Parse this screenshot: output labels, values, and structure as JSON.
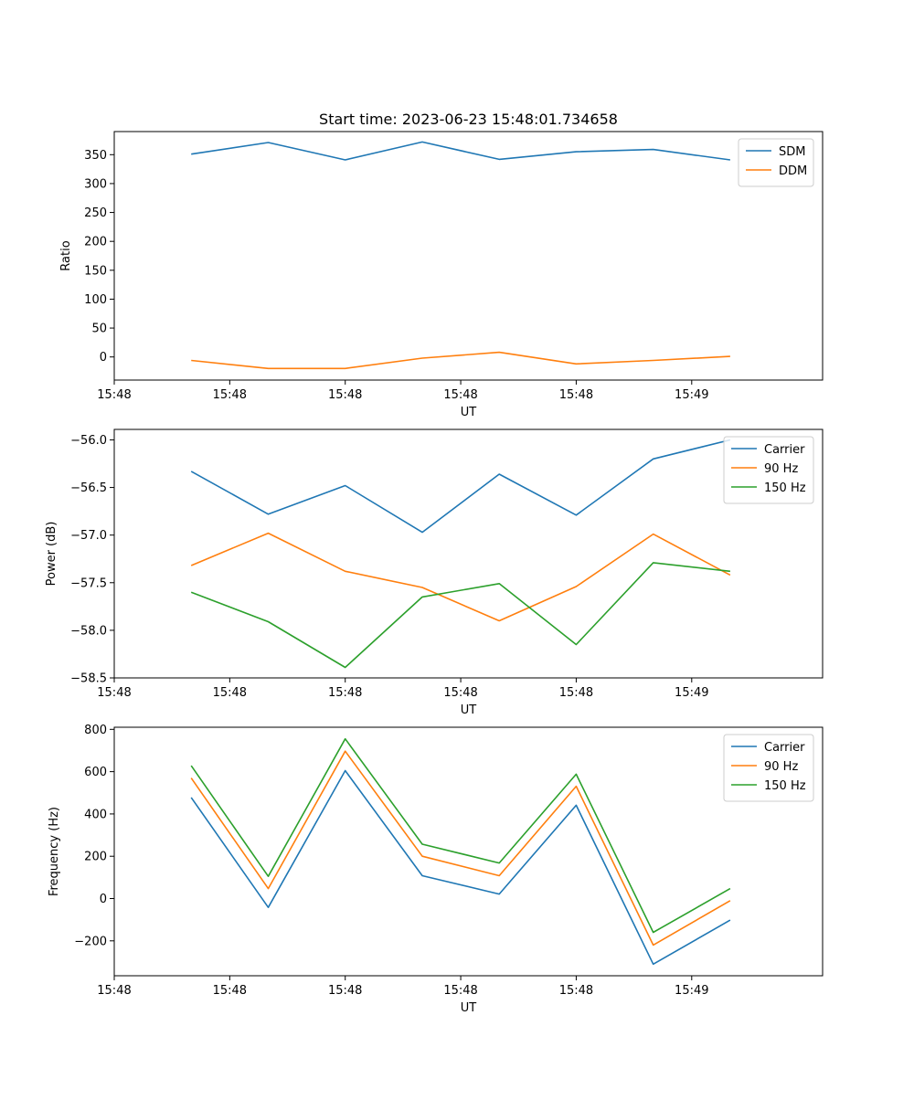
{
  "title": "Start time: 2023-06-23 15:48:01.734658",
  "chart_data": [
    {
      "type": "line",
      "xlabel": "UT",
      "ylabel": "Ratio",
      "x": [
        1,
        2,
        3,
        4,
        5,
        6,
        7,
        8
      ],
      "xlim": [
        0.0,
        9.2
      ],
      "x_ticks": [
        {
          "value": 0.0,
          "label": "15:48"
        },
        {
          "value": 1.5,
          "label": "15:48"
        },
        {
          "value": 3.0,
          "label": "15:48"
        },
        {
          "value": 4.5,
          "label": "15:48"
        },
        {
          "value": 6.0,
          "label": "15:48"
        },
        {
          "value": 7.5,
          "label": "15:49"
        }
      ],
      "ylim": [
        -40,
        390
      ],
      "y_ticks": [
        {
          "value": 0,
          "label": "0"
        },
        {
          "value": 50,
          "label": "50"
        },
        {
          "value": 100,
          "label": "100"
        },
        {
          "value": 150,
          "label": "150"
        },
        {
          "value": 200,
          "label": "200"
        },
        {
          "value": 250,
          "label": "250"
        },
        {
          "value": 300,
          "label": "300"
        },
        {
          "value": 350,
          "label": "350"
        }
      ],
      "legend_position": "top-right",
      "series": [
        {
          "name": "SDM",
          "color": "#1f77b4",
          "values": [
            351,
            371,
            341,
            372,
            342,
            355,
            359,
            341
          ]
        },
        {
          "name": "DDM",
          "color": "#ff7f0e",
          "values": [
            -6,
            -20,
            -20,
            -2,
            8,
            -12,
            -6,
            1
          ]
        }
      ]
    },
    {
      "type": "line",
      "xlabel": "UT",
      "ylabel": "Power (dB)",
      "x": [
        1,
        2,
        3,
        4,
        5,
        6,
        7,
        8
      ],
      "xlim": [
        0.0,
        9.2
      ],
      "x_ticks": [
        {
          "value": 0.0,
          "label": "15:48"
        },
        {
          "value": 1.5,
          "label": "15:48"
        },
        {
          "value": 3.0,
          "label": "15:48"
        },
        {
          "value": 4.5,
          "label": "15:48"
        },
        {
          "value": 6.0,
          "label": "15:48"
        },
        {
          "value": 7.5,
          "label": "15:49"
        }
      ],
      "ylim": [
        -58.5,
        -55.89
      ],
      "y_ticks": [
        {
          "value": -58.5,
          "label": "−58.5"
        },
        {
          "value": -58.0,
          "label": "−58.0"
        },
        {
          "value": -57.5,
          "label": "−57.5"
        },
        {
          "value": -57.0,
          "label": "−57.0"
        },
        {
          "value": -56.5,
          "label": "−56.5"
        },
        {
          "value": -56.0,
          "label": "−56.0"
        }
      ],
      "legend_position": "top-right",
      "series": [
        {
          "name": "Carrier",
          "color": "#1f77b4",
          "values": [
            -56.33,
            -56.78,
            -56.48,
            -56.97,
            -56.36,
            -56.79,
            -56.2,
            -56.0
          ]
        },
        {
          "name": "90 Hz",
          "color": "#ff7f0e",
          "values": [
            -57.32,
            -56.98,
            -57.38,
            -57.55,
            -57.9,
            -57.54,
            -56.99,
            -57.42
          ]
        },
        {
          "name": "150 Hz",
          "color": "#2ca02c",
          "values": [
            -57.6,
            -57.91,
            -58.39,
            -57.65,
            -57.51,
            -58.15,
            -57.29,
            -57.38
          ]
        }
      ]
    },
    {
      "type": "line",
      "xlabel": "UT",
      "ylabel": "Frequency (Hz)",
      "x": [
        1,
        2,
        3,
        4,
        5,
        6,
        7,
        8
      ],
      "xlim": [
        0.0,
        9.2
      ],
      "x_ticks": [
        {
          "value": 0.0,
          "label": "15:48"
        },
        {
          "value": 1.5,
          "label": "15:48"
        },
        {
          "value": 3.0,
          "label": "15:48"
        },
        {
          "value": 4.5,
          "label": "15:48"
        },
        {
          "value": 6.0,
          "label": "15:48"
        },
        {
          "value": 7.5,
          "label": "15:49"
        }
      ],
      "ylim": [
        -365,
        810
      ],
      "y_ticks": [
        {
          "value": -200,
          "label": "−200"
        },
        {
          "value": 0,
          "label": "0"
        },
        {
          "value": 200,
          "label": "200"
        },
        {
          "value": 400,
          "label": "400"
        },
        {
          "value": 600,
          "label": "600"
        },
        {
          "value": 800,
          "label": "800"
        }
      ],
      "legend_position": "top-right",
      "series": [
        {
          "name": "Carrier",
          "color": "#1f77b4",
          "values": [
            478,
            -42,
            605,
            108,
            21,
            441,
            -310,
            -102
          ]
        },
        {
          "name": "90 Hz",
          "color": "#ff7f0e",
          "values": [
            570,
            47,
            697,
            200,
            108,
            531,
            -220,
            -10
          ]
        },
        {
          "name": "150 Hz",
          "color": "#2ca02c",
          "values": [
            628,
            105,
            755,
            257,
            168,
            588,
            -160,
            47
          ]
        }
      ]
    }
  ]
}
